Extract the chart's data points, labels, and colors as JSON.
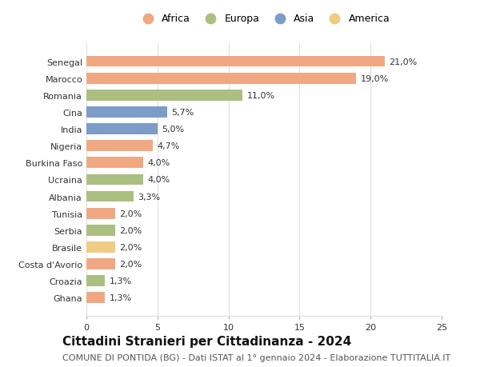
{
  "countries": [
    "Senegal",
    "Marocco",
    "Romania",
    "Cina",
    "India",
    "Nigeria",
    "Burkina Faso",
    "Ucraina",
    "Albania",
    "Tunisia",
    "Serbia",
    "Brasile",
    "Costa d'Avorio",
    "Croazia",
    "Ghana"
  ],
  "values": [
    21.0,
    19.0,
    11.0,
    5.7,
    5.0,
    4.7,
    4.0,
    4.0,
    3.3,
    2.0,
    2.0,
    2.0,
    2.0,
    1.3,
    1.3
  ],
  "labels": [
    "21,0%",
    "19,0%",
    "11,0%",
    "5,7%",
    "5,0%",
    "4,7%",
    "4,0%",
    "4,0%",
    "3,3%",
    "2,0%",
    "2,0%",
    "2,0%",
    "2,0%",
    "1,3%",
    "1,3%"
  ],
  "continents": [
    "Africa",
    "Africa",
    "Europa",
    "Asia",
    "Asia",
    "Africa",
    "Africa",
    "Europa",
    "Europa",
    "Africa",
    "Europa",
    "America",
    "Africa",
    "Europa",
    "Africa"
  ],
  "colors": {
    "Africa": "#F0A882",
    "Europa": "#AABF80",
    "Asia": "#7B9DC8",
    "America": "#F0CC82"
  },
  "legend_order": [
    "Africa",
    "Europa",
    "Asia",
    "America"
  ],
  "title": "Cittadini Stranieri per Cittadinanza - 2024",
  "subtitle": "COMUNE DI PONTIDA (BG) - Dati ISTAT al 1° gennaio 2024 - Elaborazione TUTTITALIA.IT",
  "xlim": [
    0,
    25
  ],
  "xticks": [
    0,
    5,
    10,
    15,
    20,
    25
  ],
  "background_color": "#ffffff",
  "grid_color": "#e0e0e0",
  "bar_height": 0.65,
  "title_fontsize": 11,
  "subtitle_fontsize": 8,
  "label_fontsize": 8,
  "tick_fontsize": 8,
  "legend_fontsize": 9
}
